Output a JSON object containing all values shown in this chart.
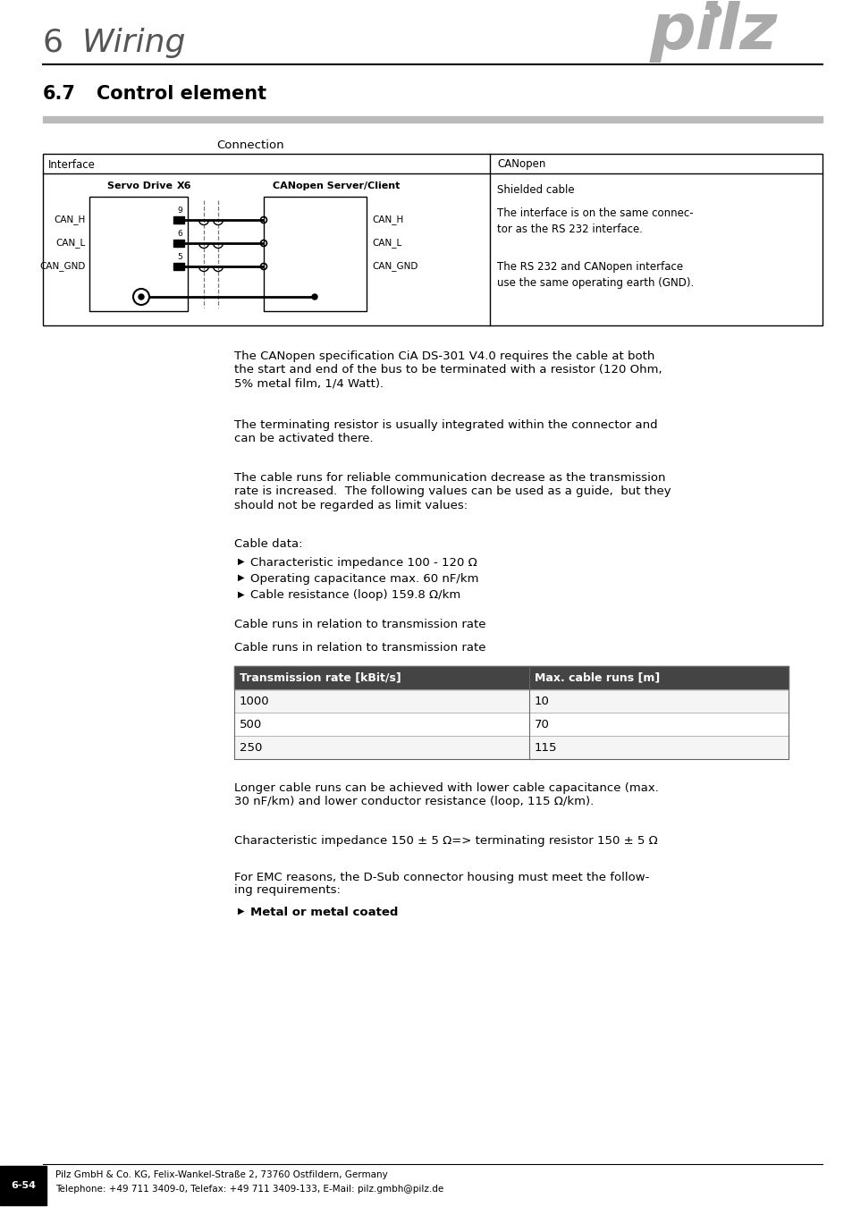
{
  "title_number": "6",
  "title_text": "Wiring",
  "section_number": "6.7",
  "section_title": "Control element",
  "pilz_logo_color": "#aaaaaa",
  "connection_label": "Connection",
  "table_header_left": "Interface",
  "table_header_right": "CANopen",
  "servo_drive_label": "Servo Drive",
  "x6_label": "X6",
  "canopen_server_label": "CANopen Server/Client",
  "signals": [
    "CAN_H",
    "CAN_L",
    "CAN_GND"
  ],
  "pin_numbers": [
    "9",
    "6",
    "5"
  ],
  "right_signals": [
    "CAN_H",
    "CAN_L",
    "CAN_GND"
  ],
  "canopen_col_text_0": "Shielded cable",
  "canopen_col_text_1": "The interface is on the same connec-\ntor as the RS 232 interface.",
  "canopen_col_text_2": "The RS 232 and CANopen interface\nuse the same operating earth (GND).",
  "para1": "The CANopen specification CiA DS-301 V4.0 requires the cable at both\nthe start and end of the bus to be terminated with a resistor (120 Ohm,\n5% metal film, 1/4 Watt).",
  "para2": "The terminating resistor is usually integrated within the connector and\ncan be activated there.",
  "para3": "The cable runs for reliable communication decrease as the transmission\nrate is increased.  The following values can be used as a guide,  but they\nshould not be regarded as limit values:",
  "cable_data_title": "Cable data:",
  "cable_data_items": [
    "Characteristic impedance 100 - 120 Ω",
    "Operating capacitance max. 60 nF/km",
    "Cable resistance (loop) 159.8 Ω/km"
  ],
  "cable_runs_title1": "Cable runs in relation to transmission rate",
  "cable_runs_title2": "Cable runs in relation to transmission rate",
  "table2_header": [
    "Transmission rate [kBit/s]",
    "Max. cable runs [m]"
  ],
  "table2_rows": [
    [
      "1000",
      "10"
    ],
    [
      "500",
      "70"
    ],
    [
      "250",
      "115"
    ]
  ],
  "para4": "Longer cable runs can be achieved with lower cable capacitance (max.\n30 nF/km) and lower conductor resistance (loop, 115 Ω/km).",
  "para5": "Characteristic impedance 150 ± 5 Ω=> terminating resistor 150 ± 5 Ω",
  "para6": "For EMC reasons, the D-Sub connector housing must meet the follow-\ning requirements:",
  "bullet_items": [
    "Metal or metal coated"
  ],
  "footer_page": "6-54",
  "footer_line1": "Pilz GmbH & Co. KG, Felix-Wankel-Straße 2, 73760 Ostfildern, Germany",
  "footer_line2": "Telephone: +49 711 3409-0, Telefax: +49 711 3409-133, E-Mail: pilz.gmbh@pilz.de",
  "bg_color": "#ffffff"
}
